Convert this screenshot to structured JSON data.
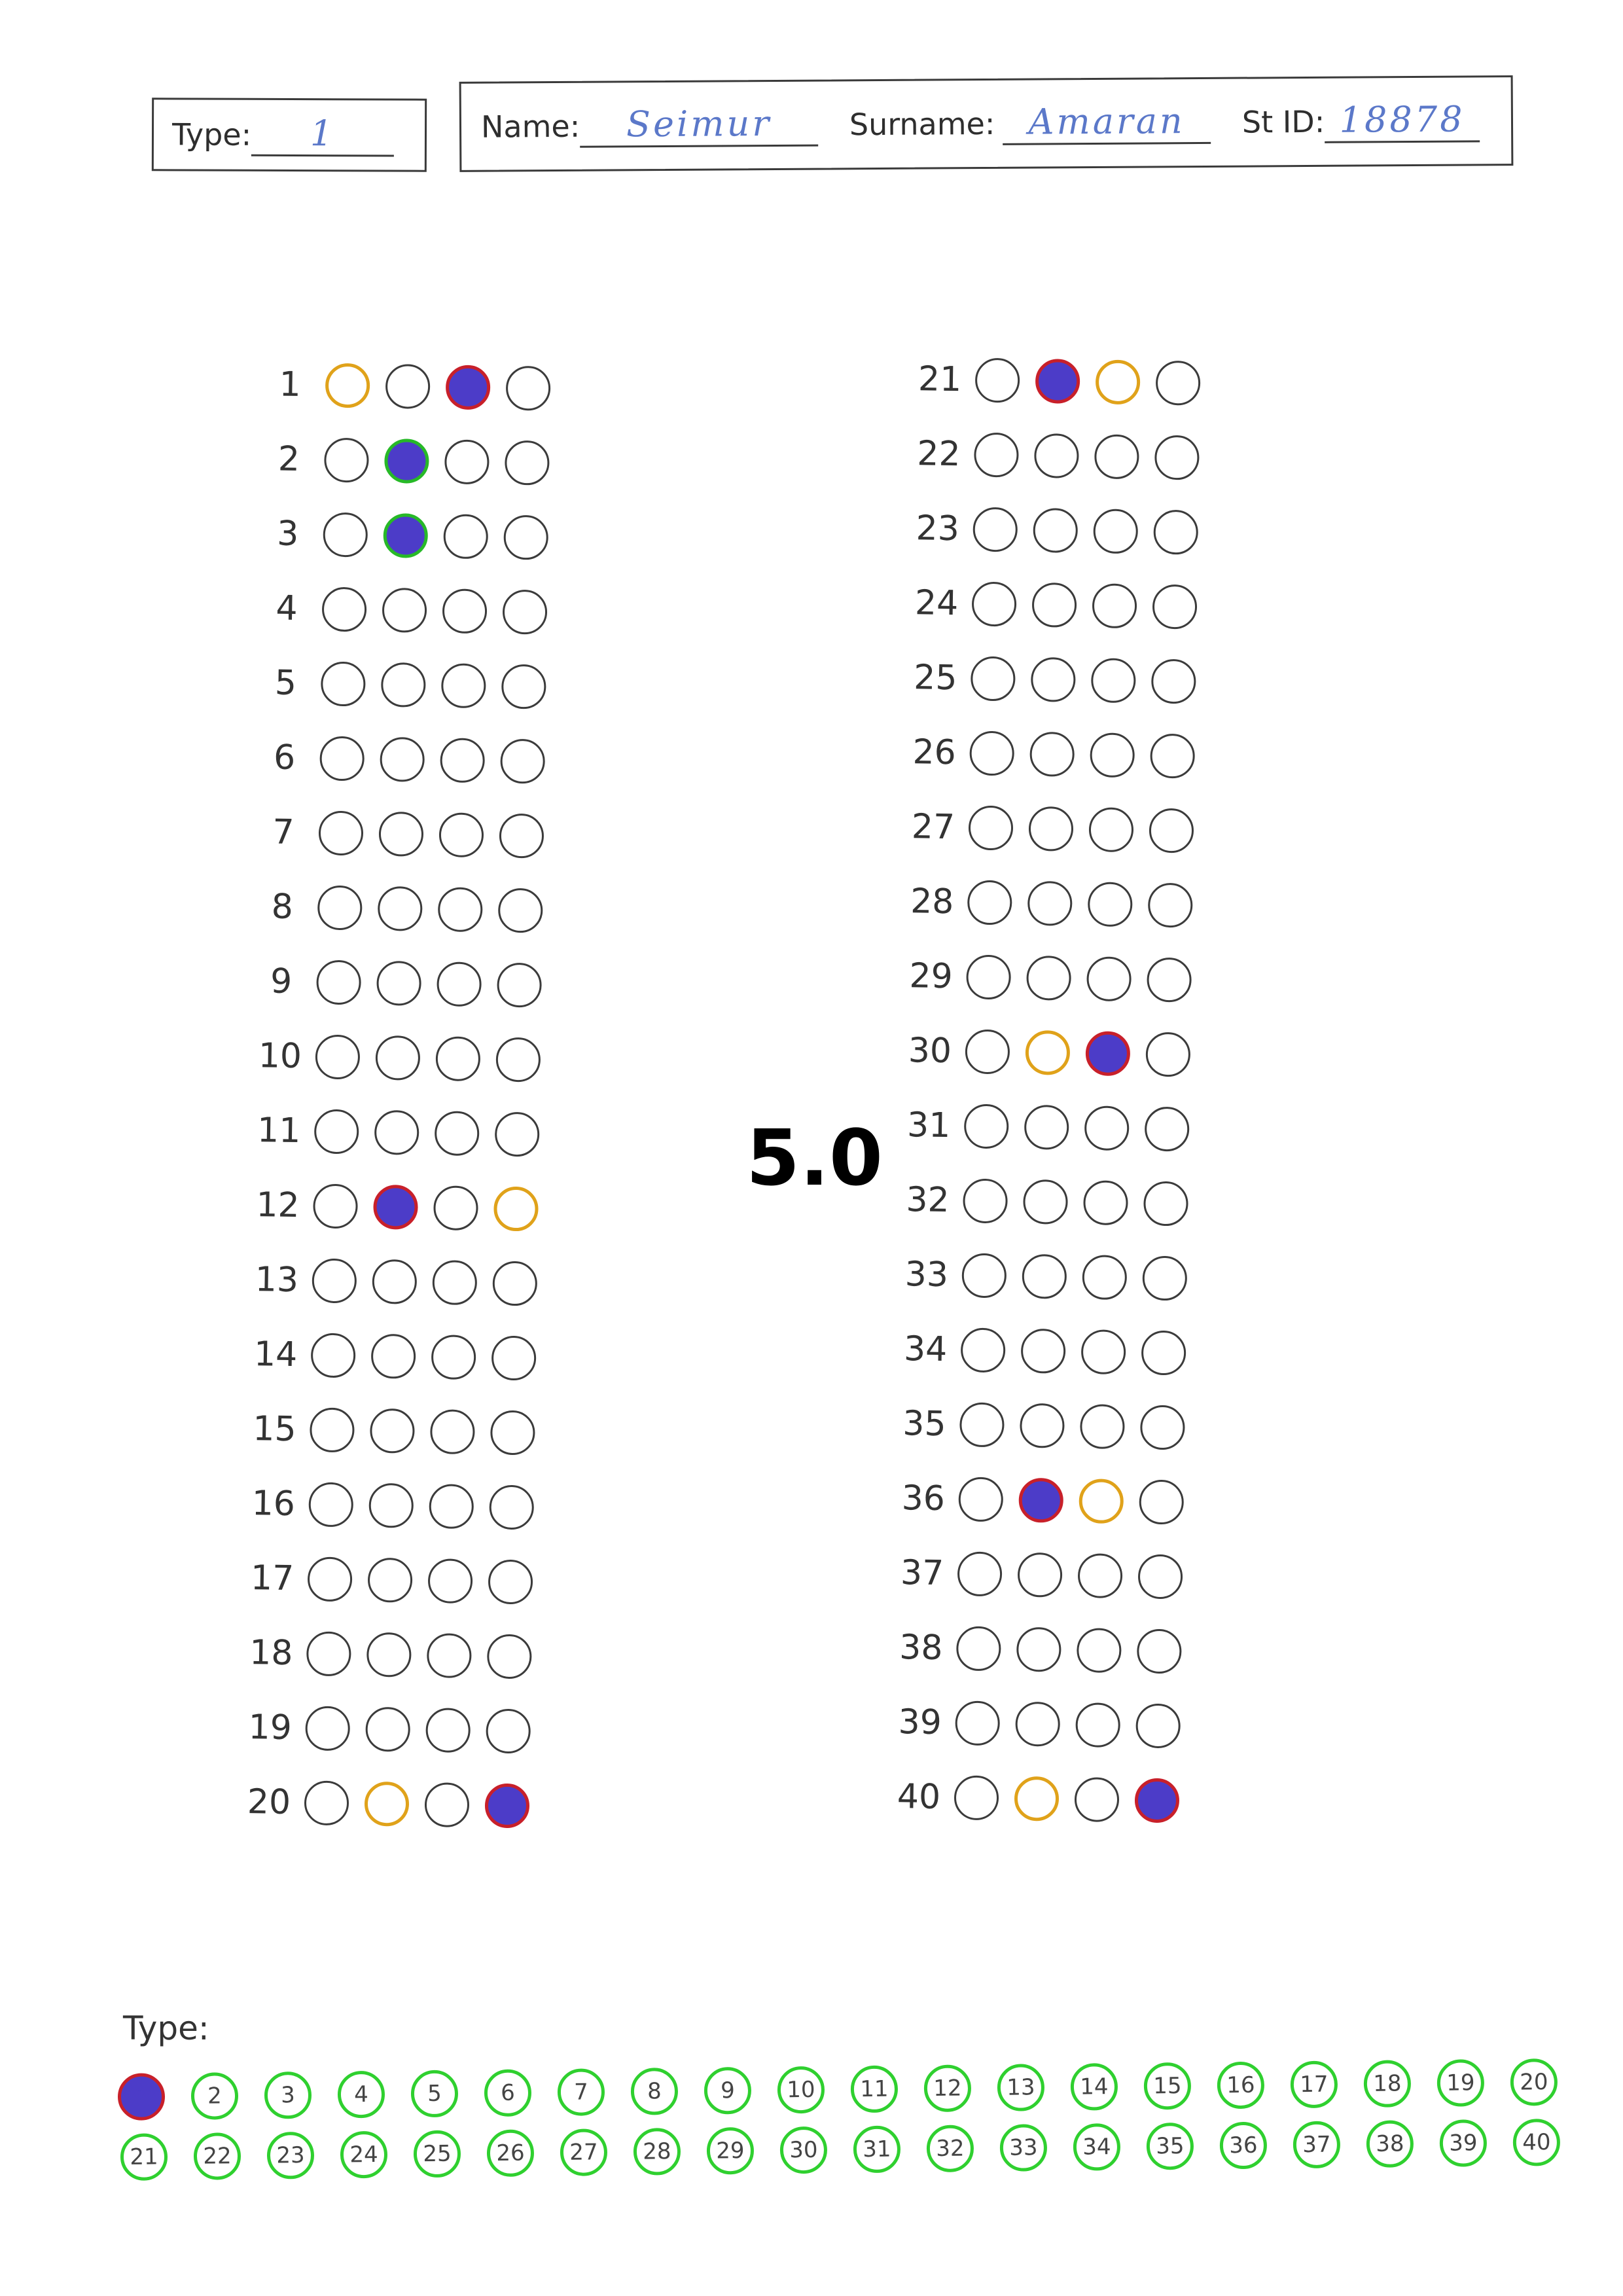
{
  "header": {
    "type_label": "Type:",
    "type_value": "1",
    "name_label": "Name:",
    "name_value": "Seimur",
    "surname_label": "Surname:",
    "surname_value": "Amaran",
    "stid_label": "St ID:",
    "stid_value": "18878"
  },
  "score": "5.0",
  "answer_key": {
    "1": {
      "marked": 3,
      "correct": 1
    },
    "2": {
      "marked": 2,
      "correct": 2
    },
    "3": {
      "marked": 2,
      "correct": 2
    },
    "12": {
      "marked": 2,
      "correct": 4
    },
    "20": {
      "marked": 4,
      "correct": 2
    },
    "21": {
      "marked": 2,
      "correct": 3
    },
    "30": {
      "marked": 3,
      "correct": 2
    },
    "36": {
      "marked": 2,
      "correct": 3
    },
    "40": {
      "marked": 4,
      "correct": 2
    }
  },
  "question_numbers": {
    "left": [
      "1",
      "2",
      "3",
      "4",
      "5",
      "6",
      "7",
      "8",
      "9",
      "10",
      "11",
      "12",
      "13",
      "14",
      "15",
      "16",
      "17",
      "18",
      "19",
      "20"
    ],
    "right": [
      "21",
      "22",
      "23",
      "24",
      "25",
      "26",
      "27",
      "28",
      "29",
      "30",
      "31",
      "32",
      "33",
      "34",
      "35",
      "36",
      "37",
      "38",
      "39",
      "40"
    ]
  },
  "options_per_question": 4,
  "type_selector": {
    "label": "Type:",
    "row1": [
      "1",
      "2",
      "3",
      "4",
      "5",
      "6",
      "7",
      "8",
      "9",
      "10",
      "11",
      "12",
      "13",
      "14",
      "15",
      "16",
      "17",
      "18",
      "19",
      "20"
    ],
    "row2": [
      "21",
      "22",
      "23",
      "24",
      "25",
      "26",
      "27",
      "28",
      "29",
      "30",
      "31",
      "32",
      "33",
      "34",
      "35",
      "36",
      "37",
      "38",
      "39",
      "40"
    ],
    "selected": "1"
  },
  "colors": {
    "fill": "#4c3cc8",
    "wrong_outline": "#c8202a",
    "right_outline": "#27b927",
    "correct_answer": "#e0a21a",
    "type_bubble": "#2fd02f"
  }
}
